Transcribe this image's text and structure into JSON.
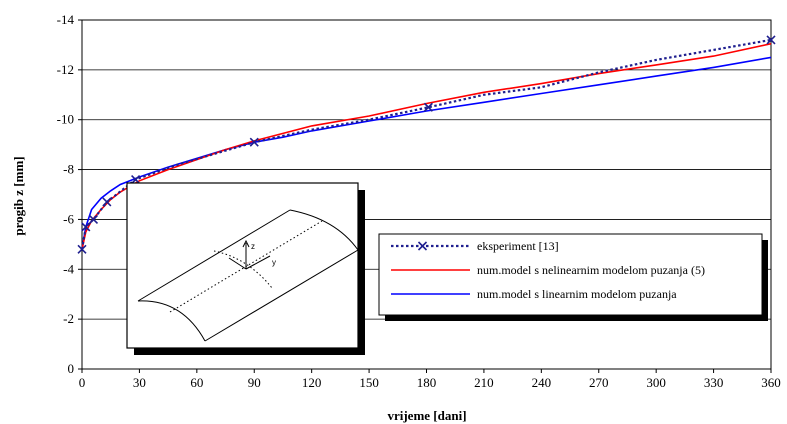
{
  "chart_data": {
    "type": "line",
    "xlabel": "vrijeme  [dani]",
    "ylabel": "progib z [mm]",
    "xlim": [
      0,
      360
    ],
    "ylim": [
      0,
      -14
    ],
    "x_ticks": [
      0,
      30,
      60,
      90,
      120,
      150,
      180,
      210,
      240,
      270,
      300,
      330,
      360
    ],
    "y_ticks": [
      0,
      -2,
      -4,
      -6,
      -8,
      -10,
      -12,
      -14
    ],
    "grid": "horizontal",
    "legend_position": "right-middle",
    "series": [
      {
        "name": "eksperiment [13]",
        "color": "#1f1f8f",
        "style": "dotted-markers-x",
        "points": [
          [
            0,
            -4.8
          ],
          [
            2,
            -5.7
          ],
          [
            6,
            -6.0
          ],
          [
            13,
            -6.7
          ],
          [
            28,
            -7.6
          ],
          [
            50,
            -8.2
          ],
          [
            90,
            -9.1
          ],
          [
            120,
            -9.6
          ],
          [
            150,
            -10.0
          ],
          [
            181,
            -10.5
          ],
          [
            210,
            -11.0
          ],
          [
            240,
            -11.3
          ],
          [
            270,
            -11.9
          ],
          [
            300,
            -12.4
          ],
          [
            330,
            -12.8
          ],
          [
            360,
            -13.2
          ]
        ],
        "marker_x": [
          0,
          2,
          6,
          13,
          28,
          90,
          181,
          360
        ]
      },
      {
        "name": "num.model s nelinearnim modelom puzanja (5)",
        "color": "#ff0000",
        "style": "solid",
        "points": [
          [
            0,
            -4.8
          ],
          [
            2,
            -5.5
          ],
          [
            5,
            -5.95
          ],
          [
            10,
            -6.4
          ],
          [
            15,
            -6.8
          ],
          [
            20,
            -7.1
          ],
          [
            30,
            -7.55
          ],
          [
            45,
            -8.0
          ],
          [
            60,
            -8.4
          ],
          [
            75,
            -8.8
          ],
          [
            90,
            -9.15
          ],
          [
            105,
            -9.45
          ],
          [
            120,
            -9.75
          ],
          [
            150,
            -10.15
          ],
          [
            180,
            -10.65
          ],
          [
            210,
            -11.1
          ],
          [
            240,
            -11.45
          ],
          [
            270,
            -11.85
          ],
          [
            300,
            -12.2
          ],
          [
            330,
            -12.55
          ],
          [
            360,
            -13.05
          ]
        ]
      },
      {
        "name": "num.model s linearnim modelom puzanja",
        "color": "#0000ff",
        "style": "solid",
        "points": [
          [
            0,
            -4.8
          ],
          [
            2,
            -5.7
          ],
          [
            5,
            -6.4
          ],
          [
            10,
            -6.85
          ],
          [
            15,
            -7.15
          ],
          [
            20,
            -7.4
          ],
          [
            30,
            -7.7
          ],
          [
            45,
            -8.1
          ],
          [
            60,
            -8.45
          ],
          [
            75,
            -8.8
          ],
          [
            90,
            -9.1
          ],
          [
            105,
            -9.3
          ],
          [
            120,
            -9.55
          ],
          [
            150,
            -9.95
          ],
          [
            180,
            -10.35
          ],
          [
            210,
            -10.7
          ],
          [
            240,
            -11.05
          ],
          [
            270,
            -11.4
          ],
          [
            300,
            -11.75
          ],
          [
            330,
            -12.1
          ],
          [
            360,
            -12.5
          ]
        ]
      }
    ]
  },
  "inset": {
    "label_z": "z",
    "label_y": "y"
  }
}
